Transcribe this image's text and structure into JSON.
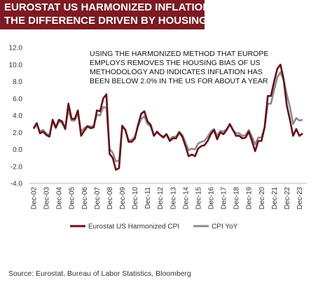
{
  "chart_data": {
    "type": "line",
    "title": [
      "EUROSTAT US HARMONIZED INFLATION VS CPI YOY",
      "THE DIFFERENCE DRIVEN BY HOUSING"
    ],
    "annotation": [
      "USING THE HARMONIZED METHOD THAT EUROPE",
      "EMPLOYS REMOVES THE HOUSING BIAS OF US",
      "METHODOLOGY AND INDICATES INFLATION HAS",
      "BEEN BELOW 2.0% IN THE US FOR ABOUT A YEAR"
    ],
    "source": "Source:  Eurostat,  Bureau of Labor Statistics,  Bloomberg",
    "categories": [
      "Dec-02",
      null,
      null,
      null,
      "Dec-03",
      null,
      null,
      null,
      "Dec-04",
      null,
      null,
      null,
      "Dec-05",
      null,
      null,
      null,
      "Dec-06",
      null,
      null,
      null,
      "Dec-07",
      null,
      null,
      null,
      "Dec-08",
      null,
      null,
      null,
      "Dec-09",
      null,
      null,
      null,
      "Dec-10",
      null,
      null,
      null,
      "Dec-11",
      null,
      null,
      null,
      "Dec-12",
      null,
      null,
      null,
      "Dec-13",
      null,
      null,
      null,
      "Dec-14",
      null,
      null,
      null,
      "Dec-15",
      null,
      null,
      null,
      "Dec-16",
      null,
      null,
      null,
      "Dec-17",
      null,
      null,
      null,
      "Dec-18",
      null,
      null,
      null,
      "Dec-19",
      null,
      null,
      null,
      "Dec-20",
      null,
      null,
      null,
      "Dec-21",
      null,
      null,
      null,
      "Dec-22",
      null,
      null,
      null,
      "Dec-23",
      null
    ],
    "series": [
      {
        "name": "Eurostat US Harmonized CPI",
        "color": "#6b0f16",
        "values": [
          2.5,
          3.1,
          1.9,
          2.1,
          1.7,
          1.5,
          3.5,
          2.6,
          3.5,
          3.3,
          2.4,
          5.4,
          3.6,
          3.6,
          4.6,
          1.6,
          2.2,
          2.7,
          2.5,
          2.6,
          4.6,
          4.5,
          6.0,
          6.5,
          -0.5,
          -1.0,
          -2.4,
          -2.2,
          2.8,
          2.3,
          0.9,
          0.9,
          1.3,
          2.9,
          4.2,
          4.5,
          3.3,
          2.9,
          1.6,
          2.1,
          1.7,
          1.4,
          1.8,
          1.0,
          1.3,
          1.3,
          2.0,
          1.5,
          0.4,
          -0.8,
          -0.6,
          -0.8,
          0.1,
          0.4,
          0.5,
          1.0,
          1.8,
          2.3,
          1.2,
          2.0,
          1.8,
          2.3,
          3.0,
          2.3,
          1.6,
          1.6,
          1.3,
          1.4,
          2.1,
          1.0,
          -0.2,
          1.0,
          1.0,
          2.6,
          6.3,
          6.3,
          8.0,
          9.5,
          10.0,
          8.3,
          5.2,
          3.5,
          1.6,
          2.4,
          1.6,
          1.9
        ]
      },
      {
        "name": "CPI YoY",
        "color": "#8c8c8c",
        "values": [
          2.4,
          3.0,
          2.1,
          2.3,
          1.9,
          1.7,
          3.3,
          2.5,
          3.3,
          3.1,
          2.5,
          4.7,
          3.4,
          3.4,
          4.3,
          2.1,
          2.5,
          2.8,
          2.7,
          2.8,
          4.1,
          4.0,
          5.0,
          4.9,
          0.1,
          -0.4,
          -1.4,
          -1.3,
          2.7,
          2.3,
          1.1,
          1.1,
          1.5,
          2.7,
          3.6,
          3.9,
          3.0,
          2.7,
          1.7,
          2.0,
          1.7,
          1.5,
          1.8,
          1.2,
          1.5,
          1.5,
          2.1,
          1.7,
          0.8,
          -0.1,
          0.1,
          0.0,
          0.7,
          0.9,
          1.0,
          1.5,
          2.1,
          2.4,
          1.6,
          2.2,
          2.1,
          2.4,
          2.9,
          2.3,
          1.9,
          1.9,
          1.6,
          1.7,
          2.3,
          1.5,
          0.6,
          1.4,
          1.4,
          2.6,
          5.4,
          5.4,
          7.0,
          8.5,
          9.1,
          8.2,
          6.5,
          5.0,
          3.0,
          3.7,
          3.4,
          3.5
        ]
      }
    ],
    "ylim": [
      -4,
      12
    ],
    "yticks": [
      {
        "value": -4,
        "label": "-4.0"
      },
      {
        "value": -2,
        "label": "-2.0"
      },
      {
        "value": 0,
        "label": "0.0"
      },
      {
        "value": 2,
        "label": "2.0"
      },
      {
        "value": 4,
        "label": "4.0"
      },
      {
        "value": 6,
        "label": "6.0"
      },
      {
        "value": 8,
        "label": "8.0"
      },
      {
        "value": 10,
        "label": "10.0"
      },
      {
        "value": 12,
        "label": "12.0"
      }
    ],
    "grid": false
  }
}
